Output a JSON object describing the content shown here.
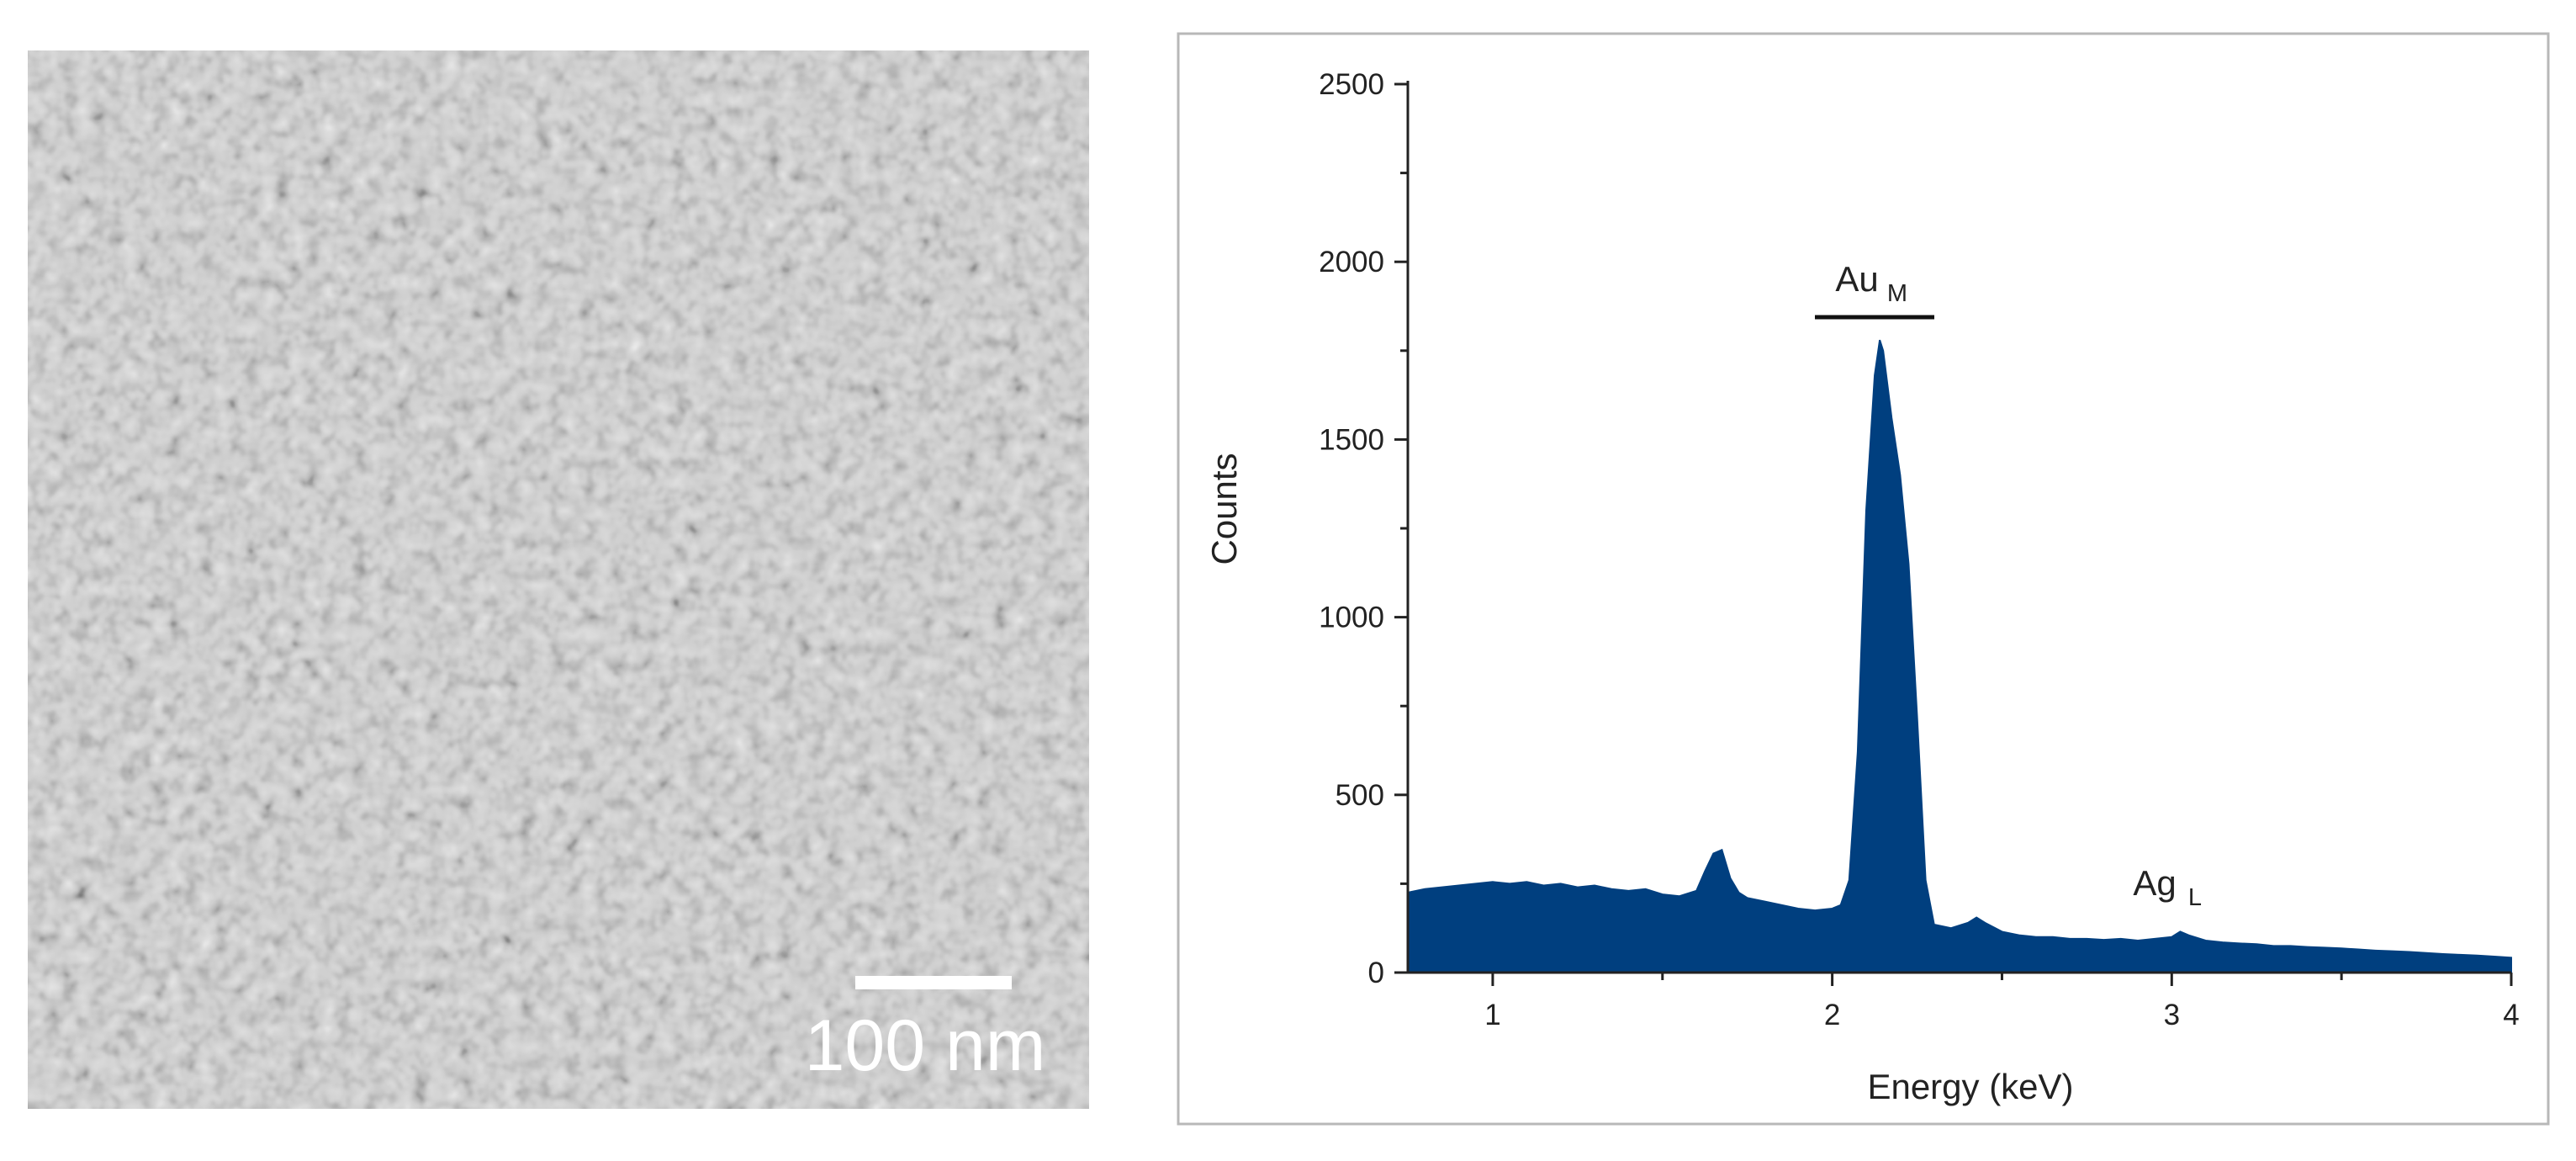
{
  "image": {
    "scale_bar_label": "100 nm"
  },
  "chart_data": {
    "type": "area",
    "x_label": "Energy (keV)",
    "y_label": "Counts",
    "x": [
      0.75,
      0.8,
      0.85,
      0.9,
      0.95,
      1.0,
      1.05,
      1.1,
      1.15,
      1.2,
      1.25,
      1.3,
      1.35,
      1.4,
      1.45,
      1.5,
      1.55,
      1.6,
      1.625,
      1.65,
      1.675,
      1.7,
      1.725,
      1.75,
      1.8,
      1.85,
      1.9,
      1.95,
      2.0,
      2.025,
      2.05,
      2.075,
      2.1,
      2.125,
      2.14,
      2.15,
      2.175,
      2.2,
      2.225,
      2.25,
      2.275,
      2.3,
      2.35,
      2.4,
      2.425,
      2.45,
      2.5,
      2.55,
      2.6,
      2.65,
      2.7,
      2.75,
      2.8,
      2.85,
      2.9,
      2.95,
      3.0,
      3.025,
      3.05,
      3.1,
      3.15,
      3.2,
      3.25,
      3.3,
      3.35,
      3.4,
      3.45,
      3.5,
      3.55,
      3.6,
      3.65,
      3.7,
      3.75,
      3.8,
      3.85,
      3.9,
      3.95,
      4.0
    ],
    "values": [
      225,
      235,
      240,
      245,
      250,
      255,
      250,
      255,
      245,
      250,
      240,
      245,
      235,
      230,
      235,
      220,
      215,
      230,
      285,
      335,
      345,
      265,
      225,
      210,
      200,
      190,
      180,
      175,
      180,
      190,
      260,
      620,
      1300,
      1680,
      1780,
      1750,
      1560,
      1400,
      1150,
      720,
      260,
      135,
      125,
      140,
      155,
      140,
      115,
      105,
      100,
      100,
      95,
      95,
      92,
      95,
      90,
      95,
      100,
      115,
      105,
      90,
      85,
      82,
      80,
      75,
      75,
      72,
      70,
      68,
      65,
      62,
      60,
      58,
      55,
      52,
      50,
      48,
      45,
      42
    ],
    "color": "#003f7f",
    "xlim": [
      0.75,
      4
    ],
    "ylim": [
      0,
      2500
    ],
    "xticks": [
      1,
      2,
      3,
      4
    ],
    "yticks": [
      0,
      500,
      1000,
      1500,
      2000,
      2500
    ],
    "xminorticks": [
      1.5,
      2.5,
      3.5
    ],
    "yminorticks": [
      250,
      750,
      1250,
      1750,
      2250
    ],
    "annotations": [
      {
        "text": "Au",
        "subscript": "M"
      },
      {
        "text": "Ag",
        "subscript": "L"
      }
    ]
  }
}
